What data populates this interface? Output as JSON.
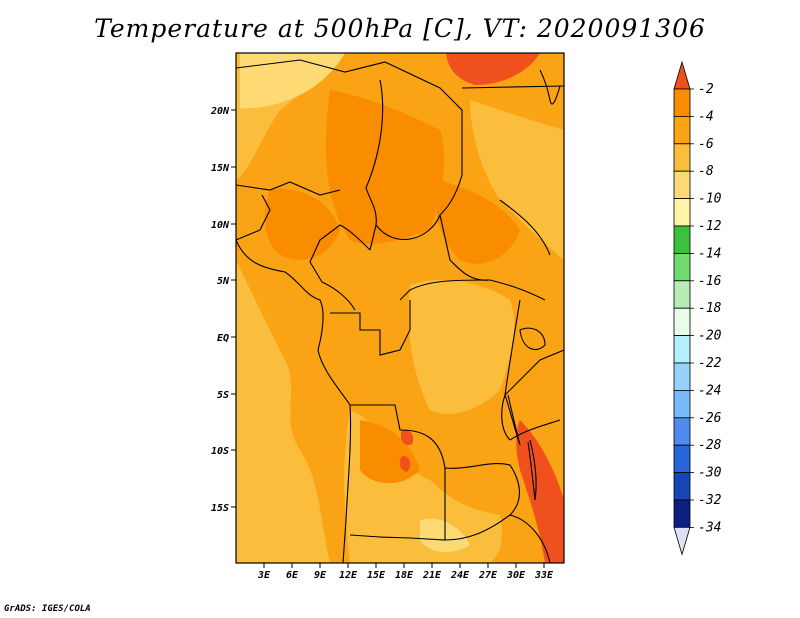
{
  "title": "Temperature at 500hPa [C], VT: 2020091306",
  "credit": "GrADS: IGES/COLA",
  "map": {
    "lon_ticks": [
      "3E",
      "6E",
      "9E",
      "12E",
      "15E",
      "18E",
      "21E",
      "24E",
      "27E",
      "30E",
      "33E"
    ],
    "lat_ticks": [
      "20N",
      "15N",
      "10N",
      "5N",
      "EQ",
      "5S",
      "10S",
      "15S"
    ]
  },
  "colorbar": {
    "labels": [
      "-2",
      "-4",
      "-6",
      "-8",
      "-10",
      "-12",
      "-14",
      "-16",
      "-18",
      "-20",
      "-22",
      "-24",
      "-26",
      "-28",
      "-30",
      "-32",
      "-34"
    ],
    "colors": [
      "#F0501E",
      "#FA8C00",
      "#FAA314",
      "#FBBE3C",
      "#FDDA73",
      "#FEF4A8",
      "#3BC13B",
      "#6FDA6F",
      "#B5EDB4",
      "#E9FBE9",
      "#B4F0FA",
      "#96D2FA",
      "#78B9FA",
      "#508CF0",
      "#2864DC",
      "#1446B4",
      "#0A1F80",
      "#E0E0F5"
    ]
  },
  "palette": {
    "t_minus_4": "#FA8C00",
    "t_minus_6": "#FAA314",
    "t_minus_8": "#FBBE3C",
    "t_minus_10": "#FDDA73",
    "t_minus_2": "#F0501E",
    "border": "#000000"
  }
}
